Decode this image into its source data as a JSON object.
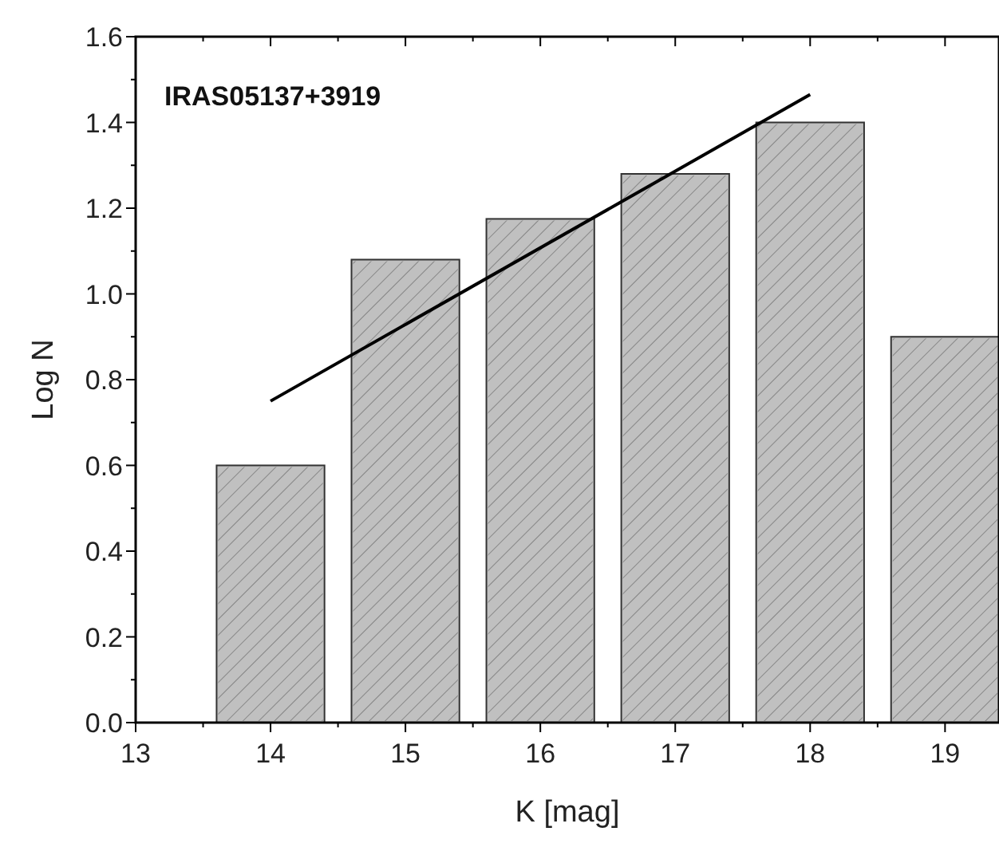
{
  "chart_data": {
    "type": "bar",
    "title": "IRAS05137+3919",
    "xlabel": "K [mag]",
    "ylabel": "Log N",
    "x": [
      14,
      15,
      16,
      17,
      18,
      19
    ],
    "series": [
      {
        "color": "#c0c0c0",
        "values": [
          0.6,
          1.08,
          1.175,
          1.28,
          1.4,
          0.9
        ]
      },
      {
        "type": "line",
        "color": "#000000",
        "x": [
          14,
          18
        ],
        "values": [
          0.75,
          1.465
        ]
      }
    ],
    "xlim": [
      13,
      19.4
    ],
    "xticks": [
      13,
      {
        "value": 13.5,
        "label": null
      },
      14,
      {
        "value": 14.5,
        "label": null
      },
      15,
      {
        "value": 15.5,
        "label": null
      },
      16,
      {
        "value": 16.5,
        "label": null
      },
      17,
      {
        "value": 17.5,
        "label": null
      },
      18,
      {
        "value": 18.5,
        "label": null
      },
      19
    ],
    "ylim": [
      0,
      1.6
    ],
    "yticks": [
      {
        "value": 0,
        "label": "0.0"
      },
      {
        "value": 0.1,
        "label": null
      },
      0.2,
      {
        "value": 0.3,
        "label": null
      },
      0.4,
      {
        "value": 0.5,
        "label": null
      },
      0.6,
      {
        "value": 0.7,
        "label": null
      },
      0.8,
      {
        "value": 0.9,
        "label": null
      },
      {
        "value": 1,
        "label": "1.0"
      },
      {
        "value": 1.1,
        "label": null
      },
      1.2,
      {
        "value": 1.3,
        "label": null
      },
      1.4,
      {
        "value": 1.5,
        "label": null
      },
      1.6
    ],
    "grid": false
  }
}
